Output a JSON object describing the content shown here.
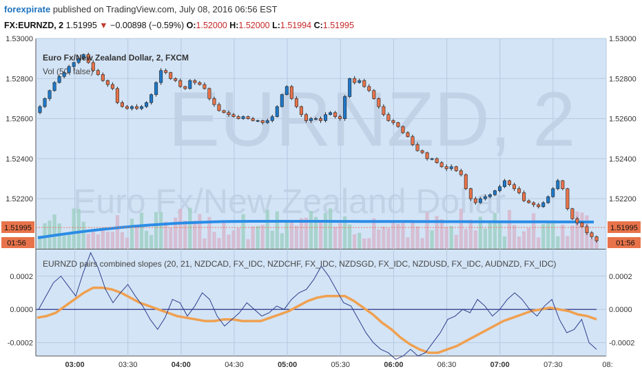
{
  "header": {
    "brand": "forexpirate",
    "published": "published on TradingView.com, July 08, 2016 06:56 EST",
    "symbol": "FX:EURNZD, 2",
    "last": "1.51995",
    "down_arrow": "▼",
    "change": "−0.00898 (−0.59%)",
    "o_label": "O:",
    "o_value": "1.52000",
    "h_label": "H:",
    "h_value": "1.52000",
    "l_label": "L:",
    "l_value": "1.51994",
    "c_label": "C:",
    "c_value": "1.51995"
  },
  "watermark": {
    "symbol": "EURNZD, 2",
    "name": "Euro Fx/New Zealand Dollar"
  },
  "main_pane": {
    "title": "Euro Fx/New Zealand Dollar, 2, FXCM",
    "volume_label": "Vol (50, false)",
    "price_tag": "1.51995",
    "time_tag": "01:56"
  },
  "indicator_pane": {
    "title": "EURNZD pairs combined slopes (20, 21, NZDCAD, FX_IDC, NZDCHF, FX_IDC, NZDSGD, FX_IDC, NZDUSD, FX_IDC, AUDNZD, FX_IDC)"
  },
  "colors": {
    "bull": "#1e78c8",
    "bear": "#e8734a",
    "ma": "#2b8ce6",
    "slope_fast": "#2c3e8c",
    "slope_slow": "#f0a050",
    "pane_bg": "#d3e4f6",
    "tag": "#e8734a"
  },
  "chart_data": [
    {
      "type": "candlestick",
      "title": "Euro Fx/New Zealand Dollar, 2, FXCM",
      "ylim": [
        1.5195,
        1.53
      ],
      "yticks": [
        "1.53000",
        "1.52800",
        "1.52600",
        "1.52400",
        "1.52200"
      ],
      "x_ticks": [
        "03:00",
        "03:30",
        "04:00",
        "04:30",
        "05:00",
        "05:30",
        "06:00",
        "06:30",
        "07:00",
        "07:30",
        "08:"
      ],
      "bold_ticks": [
        "03:00",
        "04:00",
        "05:00",
        "06:00",
        "07:00"
      ],
      "x_range": [
        "02:38",
        "08:00"
      ],
      "close": [
        1.5266,
        1.527,
        1.5274,
        1.5278,
        1.5281,
        1.5283,
        1.5286,
        1.5288,
        1.529,
        1.5292,
        1.5288,
        1.5284,
        1.5282,
        1.5279,
        1.5277,
        1.5275,
        1.5268,
        1.5266,
        1.5265,
        1.5266,
        1.5265,
        1.5266,
        1.5268,
        1.5272,
        1.5278,
        1.5284,
        1.5283,
        1.528,
        1.5279,
        1.5276,
        1.5275,
        1.5279,
        1.5278,
        1.5277,
        1.5275,
        1.527,
        1.5267,
        1.5264,
        1.5263,
        1.5262,
        1.5261,
        1.526,
        1.5261,
        1.526,
        1.5259,
        1.5259,
        1.5258,
        1.5259,
        1.5261,
        1.5266,
        1.5272,
        1.5276,
        1.527,
        1.5266,
        1.5262,
        1.5259,
        1.526,
        1.526,
        1.5259,
        1.5262,
        1.5263,
        1.5261,
        1.526,
        1.5271,
        1.528,
        1.5278,
        1.5279,
        1.5276,
        1.5274,
        1.527,
        1.5266,
        1.5262,
        1.5259,
        1.5258,
        1.5256,
        1.5253,
        1.5251,
        1.5247,
        1.5244,
        1.5243,
        1.524,
        1.524,
        1.5238,
        1.5236,
        1.5235,
        1.5236,
        1.5234,
        1.5232,
        1.5225,
        1.522,
        1.5218,
        1.522,
        1.5221,
        1.5222,
        1.5224,
        1.5226,
        1.5229,
        1.5227,
        1.5225,
        1.5223,
        1.5219,
        1.5218,
        1.5217,
        1.5216,
        1.5218,
        1.5221,
        1.5225,
        1.5229,
        1.5225,
        1.5215,
        1.521,
        1.5208,
        1.5206,
        1.5203,
        1.5201,
        1.5199
      ],
      "volume": "unlabeled histogram bars",
      "ma": "Vol (50, false) — smooth blue line near bottom of pane",
      "last_price": 1.51995
    },
    {
      "type": "line",
      "title": "EURNZD pairs combined slopes (20, 21, NZDCAD, FX_IDC, NZDCHF, FX_IDC, NZDSGD, FX_IDC, NZDUSD, FX_IDC, AUDNZD, FX_IDC)",
      "ylim": [
        -0.00028,
        0.00036
      ],
      "yticks": [
        "0.0002",
        "0.0000",
        "-0.0002"
      ],
      "zero_line": 0,
      "series": [
        {
          "values": [
            0.0,
            8e-05,
            0.00016,
            0.0002,
            0.00014,
            8e-05,
            0.00022,
            0.00034,
            0.00025,
            0.00012,
            4e-05,
            0.0001,
            0.00015,
            8e-05,
            2e-05,
            -6e-05,
            -0.00012,
            -5e-05,
            6e-05,
            4e-05,
            -4e-05,
            2e-05,
            0.0001,
            6e-05,
            -4e-05,
            -0.0001,
            -6e-05,
            -2e-05,
            4e-05,
            0.0,
            -4e-05,
            -2e-05,
            2e-05,
            0.0,
            6e-05,
            0.0001,
            0.00012,
            0.00018,
            0.00026,
            0.0002,
            0.00012,
            4e-05,
            2e-05,
            -6e-05,
            -0.00014,
            -0.0002,
            -0.00024,
            -0.00026,
            -0.0003,
            -0.00028,
            -0.00024,
            -0.00028,
            -0.00026,
            -0.0002,
            -0.00014,
            -6e-05,
            -4e-05,
            0.0,
            -2e-05,
            6e-05,
            2e-05,
            -4e-05,
            0.0,
            6e-05,
            0.0001,
            6e-05,
            0.0,
            -4e-05,
            2e-05,
            6e-05,
            -6e-05,
            -0.00014,
            -0.00012,
            -6e-05,
            -0.0002,
            -0.00024
          ]
        },
        {
          "values": [
            -5e-05,
            -4e-05,
            -2e-05,
            2e-05,
            6e-05,
            0.0001,
            0.00013,
            0.00013,
            0.00012,
            0.0001,
            7e-05,
            4e-05,
            2e-05,
            0.0,
            -2e-05,
            -4e-05,
            -5e-05,
            -6e-05,
            -7e-05,
            -7e-05,
            -6e-05,
            -6e-05,
            -7e-05,
            -7e-05,
            -7e-05,
            -5e-05,
            -3e-05,
            -1e-05,
            2e-05,
            5e-05,
            7e-05,
            8e-05,
            8e-05,
            8e-05,
            5e-05,
            1e-05,
            -3e-05,
            -8e-05,
            -0.00012,
            -0.00017,
            -0.00021,
            -0.00024,
            -0.00026,
            -0.00026,
            -0.00024,
            -0.00022,
            -0.00019,
            -0.00016,
            -0.00013,
            -0.0001,
            -7e-05,
            -5e-05,
            -3e-05,
            -1e-05,
            0.0,
            1e-05,
            0.0,
            -1e-05,
            -3e-05,
            -4e-05,
            -6e-05
          ]
        }
      ]
    }
  ]
}
